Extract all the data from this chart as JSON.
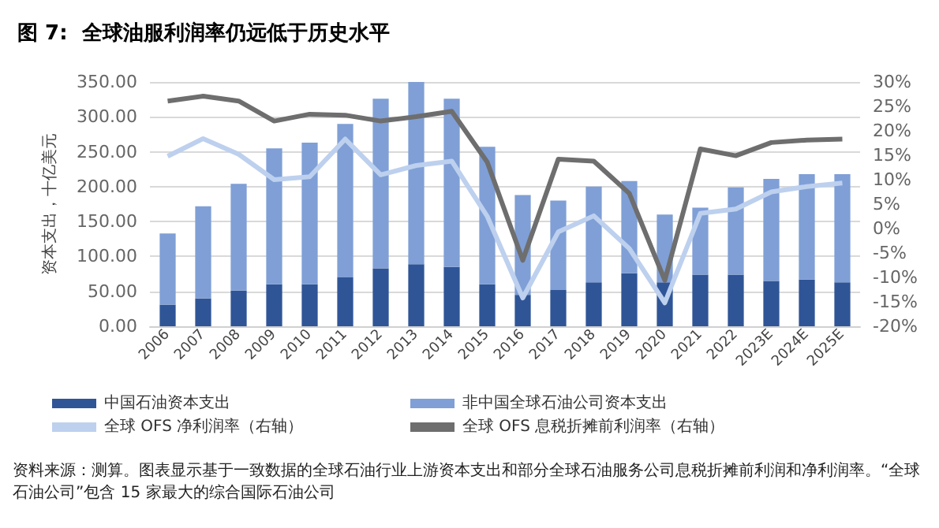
{
  "chart_data": {
    "type": "bar",
    "title": "图 7:  全球油服利润率仍远低于历史水平",
    "ylabel": "资本支出，十亿美元",
    "categories": [
      "2006",
      "2007",
      "2008",
      "2009",
      "2010",
      "2011",
      "2012",
      "2013",
      "2014",
      "2015",
      "2016",
      "2017",
      "2018",
      "2019",
      "2020",
      "2021",
      "2022",
      "2023E",
      "2024E",
      "2025E"
    ],
    "stacked": true,
    "series": [
      {
        "name": "中国石油资本支出",
        "color": "#2f5597",
        "values": [
          31,
          40,
          51,
          60,
          60,
          70,
          83,
          89,
          85,
          60,
          45,
          52,
          63,
          76,
          63,
          74,
          74,
          65,
          67,
          63
        ]
      },
      {
        "name": "非中国全球石油公司资本支出",
        "color": "#7f9fd6",
        "values": [
          102,
          132,
          153,
          195,
          203,
          220,
          243,
          261,
          241,
          197,
          143,
          128,
          137,
          132,
          97,
          96,
          125,
          146,
          151,
          155
        ]
      },
      {
        "name": "全球 OFS 净利润率（右轴）",
        "type": "line",
        "axis": "y2",
        "color": "#bdd0ee",
        "values": [
          14.8,
          18.4,
          15.2,
          10,
          10.6,
          18.3,
          11,
          12.9,
          13.8,
          2.5,
          -14.2,
          -0.7,
          2.6,
          -4.1,
          -15.2,
          3.1,
          4.0,
          7.5,
          8.6,
          9.3
        ]
      },
      {
        "name": "全球 OFS 息税折摊前利润率（右轴）",
        "type": "line",
        "axis": "y2",
        "color": "#6e6e6e",
        "values": [
          26.1,
          27.1,
          26.1,
          22,
          23.4,
          23.2,
          22,
          22.9,
          24,
          13.6,
          -6.5,
          14.2,
          13.8,
          7.2,
          -10.6,
          16.3,
          14.9,
          17.6,
          18.1,
          18.3
        ]
      }
    ],
    "ylim": [
      0,
      350
    ],
    "yticks": [
      {
        "value": 0,
        "label": "0.00"
      },
      {
        "value": 50,
        "label": "50.00"
      },
      {
        "value": 100,
        "label": "100.00"
      },
      {
        "value": 150,
        "label": "150.00"
      },
      {
        "value": 200,
        "label": "200.00"
      },
      {
        "value": 250,
        "label": "250.00"
      },
      {
        "value": 300,
        "label": "300.00"
      },
      {
        "value": 350,
        "label": "350.00"
      }
    ],
    "y2lim": [
      -20,
      30
    ],
    "y2ticks": [
      {
        "value": -20,
        "label": "-20%"
      },
      {
        "value": -15,
        "label": "-15%"
      },
      {
        "value": -10,
        "label": "-10%"
      },
      {
        "value": -5,
        "label": "-5%"
      },
      {
        "value": 0,
        "label": "0%"
      },
      {
        "value": 5,
        "label": "5%"
      },
      {
        "value": 10,
        "label": "10%"
      },
      {
        "value": 15,
        "label": "15%"
      },
      {
        "value": 20,
        "label": "20%"
      },
      {
        "value": 25,
        "label": "25%"
      },
      {
        "value": 30,
        "label": "30%"
      }
    ],
    "grid": "y",
    "legend": "bottom",
    "marker": "none",
    "annotations": [
      "资料来源：测算。图表显示基于一致数据的全球石油行业上游资本支出和部分全球石油服务公司息税折摊前利润和净利润率。“全球石油公司”包含 15 家最大的综合国际石油公司"
    ]
  }
}
